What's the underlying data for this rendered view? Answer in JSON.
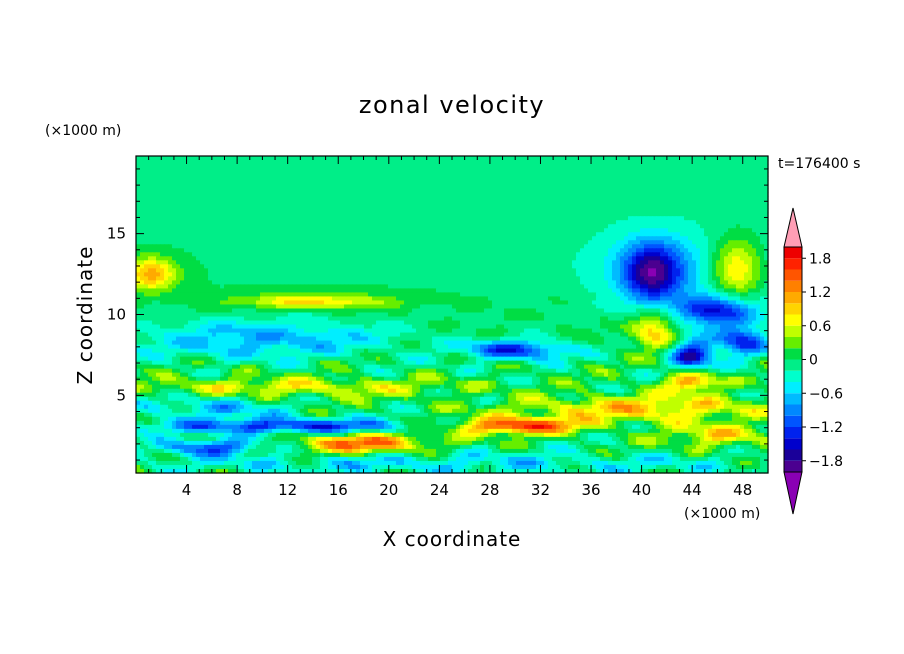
{
  "chart_data": {
    "type": "heatmap",
    "title": "zonal velocity",
    "xlabel": "X coordinate",
    "ylabel": "Z coordinate",
    "x_unit_label": "(×1000 m)",
    "y_unit_label": "(×1000 m)",
    "time_label": "t=176400 s",
    "xlim": [
      0,
      50
    ],
    "ylim": [
      0.2,
      19.8
    ],
    "x_ticks": [
      4,
      8,
      12,
      16,
      20,
      24,
      28,
      32,
      36,
      40,
      44,
      48
    ],
    "y_ticks": [
      5,
      10,
      15
    ],
    "colorbar": {
      "levels": [
        -2.0,
        -1.8,
        -1.6,
        -1.4,
        -1.2,
        -1.0,
        -0.8,
        -0.6,
        -0.4,
        -0.2,
        0,
        0.2,
        0.4,
        0.6,
        0.8,
        1.0,
        1.2,
        1.4,
        1.6,
        1.8,
        2.0
      ],
      "tick_labels": [
        "1.8",
        "1.2",
        "0.6",
        "0",
        "−0.6",
        "−1.2",
        "−1.8"
      ],
      "tick_values": [
        1.8,
        1.2,
        0.6,
        0,
        -0.6,
        -1.2,
        -1.8
      ],
      "colors": [
        "#ff9eb5",
        "#ee0000",
        "#ff2200",
        "#ff5500",
        "#ff8000",
        "#ffaa00",
        "#ffd400",
        "#ffff00",
        "#c0ff00",
        "#66ee00",
        "#00dd44",
        "#00ee88",
        "#00ffcc",
        "#00eeff",
        "#00bbff",
        "#0088ff",
        "#0055ff",
        "#0022ee",
        "#0000cc",
        "#1a0099",
        "#4b0090",
        "#8a00b4"
      ],
      "extend": "both"
    },
    "features": [
      {
        "x": 25,
        "z": 17.5,
        "sx": 30,
        "sz": 3.0,
        "v": -0.15
      },
      {
        "x": 44,
        "z": 12.8,
        "sx": 9,
        "sz": 2.5,
        "v": -0.55
      },
      {
        "x": 40.8,
        "z": 12.6,
        "sx": 2.3,
        "sz": 1.8,
        "v": -1.55
      },
      {
        "x": 47.5,
        "z": 12.8,
        "sx": 2.2,
        "sz": 2.0,
        "v": 1.2
      },
      {
        "x": 1.2,
        "z": 12.5,
        "sx": 2.0,
        "sz": 1.0,
        "v": 1.1
      },
      {
        "x": 41,
        "z": 9.0,
        "sx": 1.8,
        "sz": 1.1,
        "v": 1.0
      },
      {
        "x": 46,
        "z": 10.2,
        "sx": 3.0,
        "sz": 1.0,
        "v": -1.4
      },
      {
        "x": 44,
        "z": 7.5,
        "sx": 1.6,
        "sz": 1.0,
        "v": -1.5
      },
      {
        "x": 48,
        "z": 8.3,
        "sx": 2.0,
        "sz": 0.9,
        "v": -1.3
      },
      {
        "x": 14,
        "z": 10.8,
        "sx": 6,
        "sz": 0.45,
        "v": 0.9
      },
      {
        "x": 10,
        "z": 8.5,
        "sx": 10,
        "sz": 1.2,
        "v": -0.75
      },
      {
        "x": 30,
        "z": 7.8,
        "sx": 4,
        "sz": 0.6,
        "v": -1.3
      },
      {
        "x": 12,
        "z": 3.1,
        "sx": 10,
        "sz": 0.45,
        "v": -1.3
      },
      {
        "x": 18,
        "z": 2.0,
        "sx": 5,
        "sz": 0.6,
        "v": 1.4
      },
      {
        "x": 30,
        "z": 3.1,
        "sx": 5,
        "sz": 0.5,
        "v": 1.7
      },
      {
        "x": 44,
        "z": 5.8,
        "sx": 2.0,
        "sz": 0.6,
        "v": 1.3
      },
      {
        "x": 40,
        "z": 4.2,
        "sx": 10,
        "sz": 0.8,
        "v": 0.9
      },
      {
        "x": 12,
        "z": 5.5,
        "sx": 12,
        "sz": 0.6,
        "v": 0.7
      },
      {
        "x": 6,
        "z": 4.2,
        "sx": 6,
        "sz": 0.8,
        "v": -0.6
      },
      {
        "x": 25,
        "z": 0.8,
        "sx": 25,
        "sz": 0.7,
        "v": -0.5
      },
      {
        "x": 6,
        "z": 1.8,
        "sx": 4,
        "sz": 0.5,
        "v": -1.2
      },
      {
        "x": 46,
        "z": 2.5,
        "sx": 4,
        "sz": 0.7,
        "v": 0.8
      }
    ]
  }
}
